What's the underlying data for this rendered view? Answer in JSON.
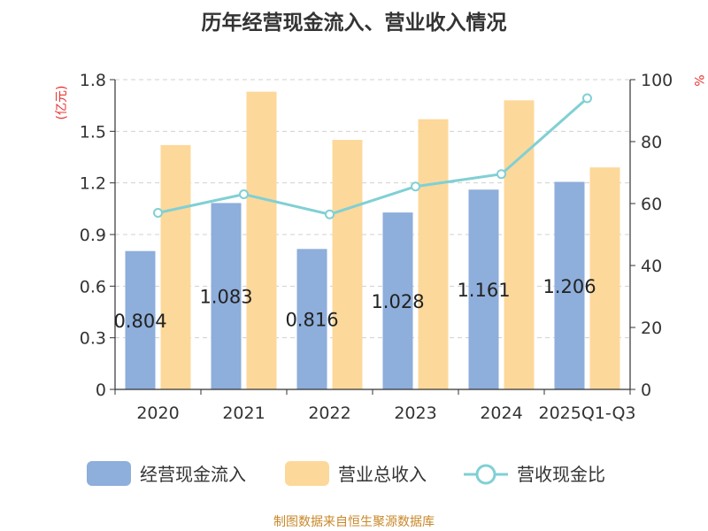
{
  "title": "历年经营现金流入、营业收入情况",
  "source": "制图数据来自恒生聚源数据库",
  "chart_data": {
    "type": "bar",
    "title": "历年经营现金流入、营业收入情况",
    "categories": [
      "2020",
      "2021",
      "2022",
      "2023",
      "2024",
      "2025Q1-Q3"
    ],
    "y_left": {
      "unit": "(亿元)",
      "ylim": [
        0,
        1.8
      ],
      "ticks": [
        "0",
        "0.3",
        "0.6",
        "0.9",
        "1.2",
        "1.5",
        "1.8"
      ]
    },
    "y_right": {
      "unit": "%",
      "ylim": [
        0,
        100
      ],
      "ticks": [
        "0",
        "20",
        "40",
        "60",
        "80",
        "100"
      ]
    },
    "grid": true,
    "legend_position": "bottom",
    "series": [
      {
        "name": "经营现金流入",
        "type": "bar",
        "axis": "left",
        "color": "#8eaedb",
        "values": [
          0.804,
          1.083,
          0.816,
          1.028,
          1.161,
          1.206
        ],
        "labels": [
          "0.804",
          "1.083",
          "0.816",
          "1.028",
          "1.161",
          "1.206"
        ]
      },
      {
        "name": "营业总收入",
        "type": "bar",
        "axis": "left",
        "color": "#fdd89b",
        "values": [
          1.42,
          1.73,
          1.45,
          1.57,
          1.68,
          1.29
        ]
      },
      {
        "name": "营收现金比",
        "type": "line",
        "axis": "right",
        "color": "#80d0d4",
        "values": [
          57,
          63,
          56.5,
          65.5,
          69.5,
          94
        ]
      }
    ]
  }
}
